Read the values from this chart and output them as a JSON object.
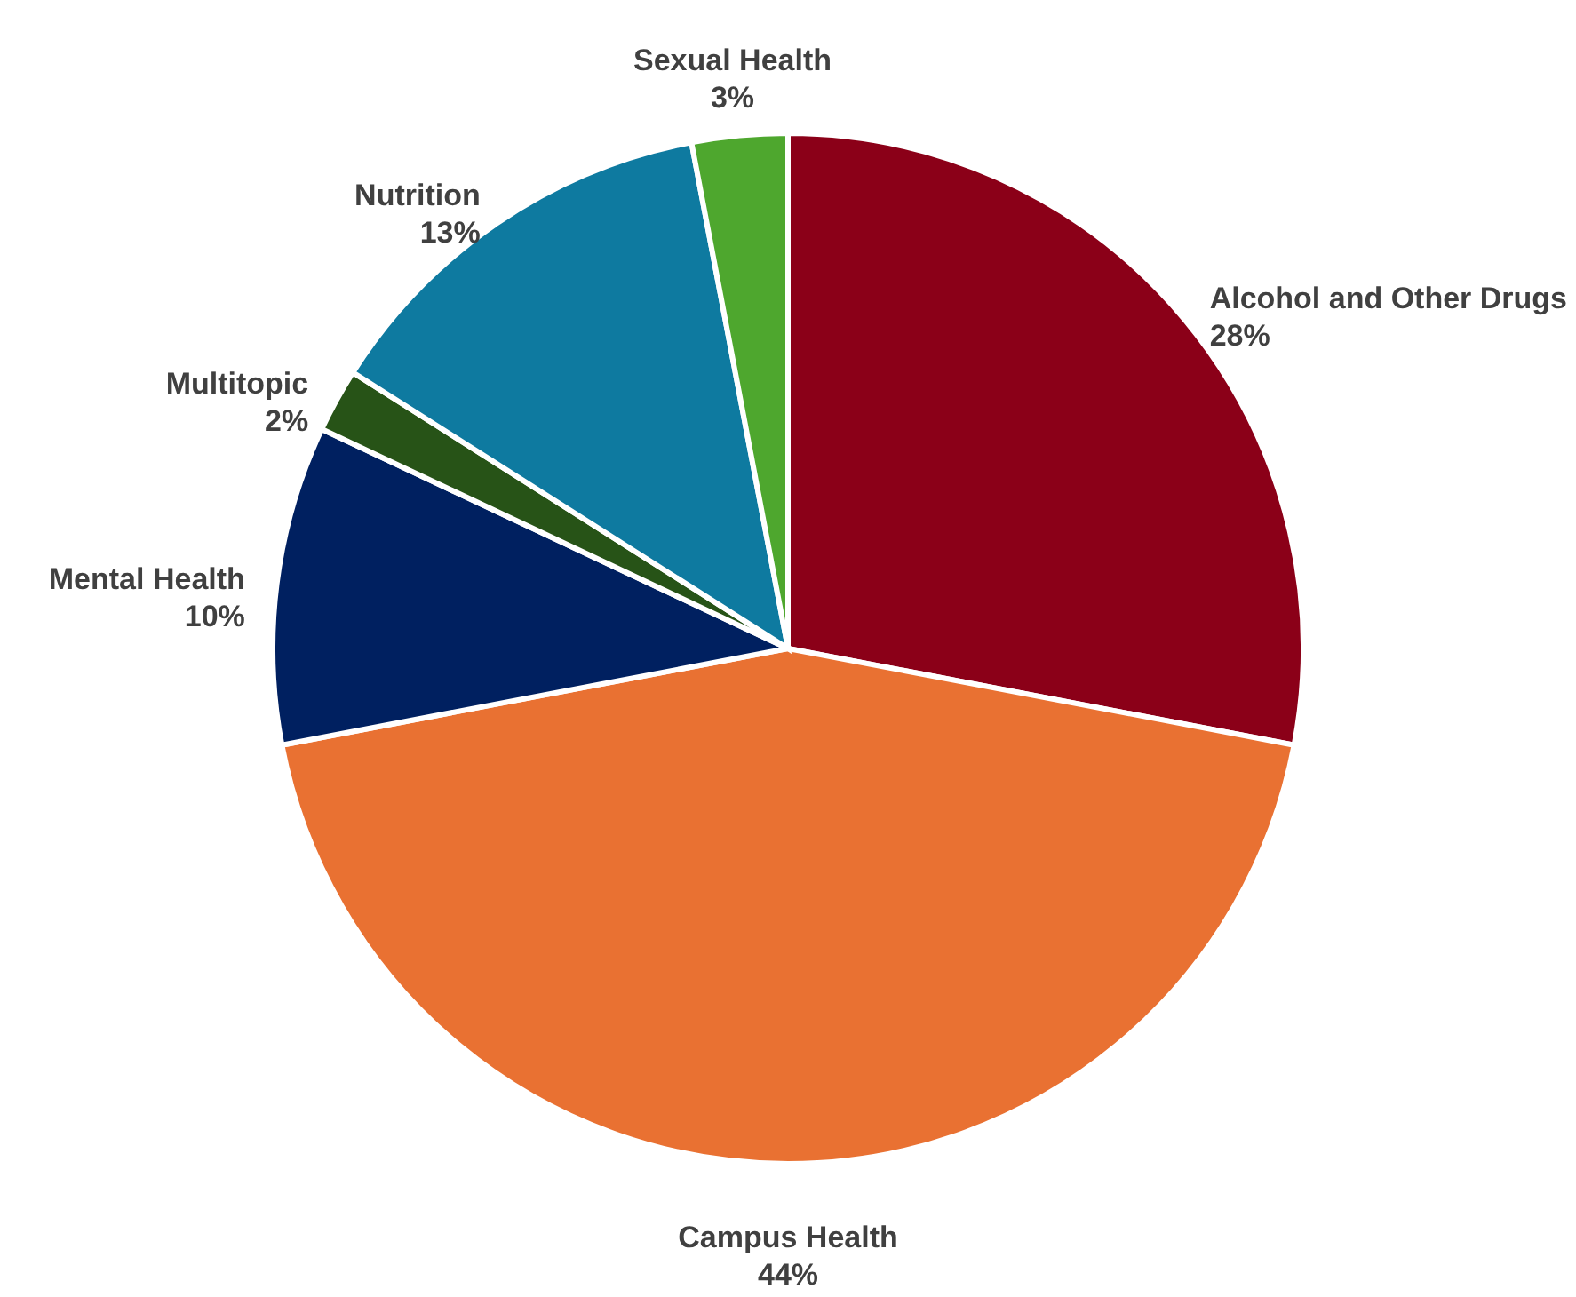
{
  "chart_data": {
    "type": "pie",
    "categories": [
      "Alcohol and Other Drugs",
      "Campus Health",
      "Mental Health",
      "Multitopic",
      "Nutrition",
      "Sexual Health"
    ],
    "values": [
      28,
      44,
      10,
      2,
      13,
      3
    ],
    "colors": [
      "#8b0018",
      "#e97132",
      "#002060",
      "#275317",
      "#0e7aa0",
      "#4ea72e"
    ],
    "value_labels": [
      "28%",
      "44%",
      "10%",
      "2%",
      "13%",
      "3%"
    ]
  }
}
